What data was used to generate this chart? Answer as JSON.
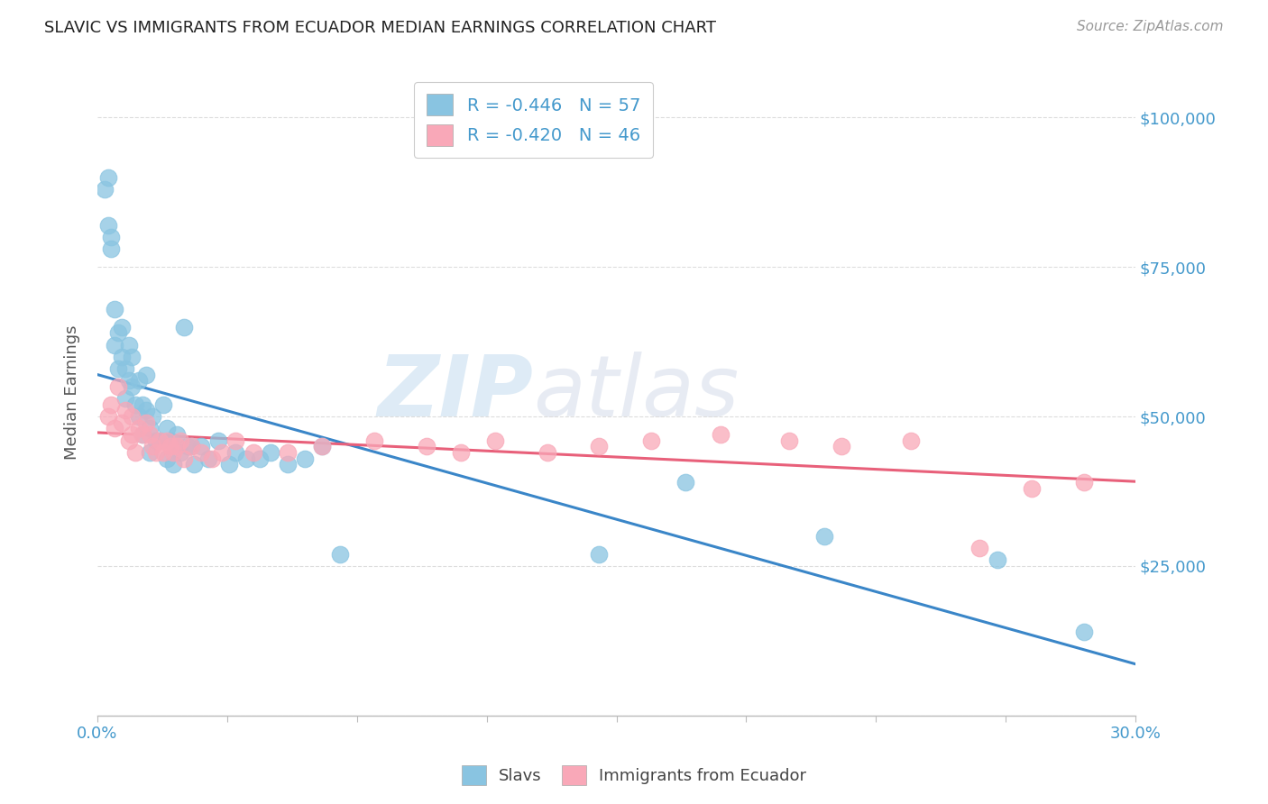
{
  "title": "SLAVIC VS IMMIGRANTS FROM ECUADOR MEDIAN EARNINGS CORRELATION CHART",
  "source": "Source: ZipAtlas.com",
  "ylabel": "Median Earnings",
  "watermark_left": "ZIP",
  "watermark_right": "atlas",
  "yticks": [
    0,
    25000,
    50000,
    75000,
    100000
  ],
  "ytick_labels": [
    "",
    "$25,000",
    "$50,000",
    "$75,000",
    "$100,000"
  ],
  "xlim": [
    0.0,
    0.3
  ],
  "ylim": [
    0,
    108000
  ],
  "color_slavs": "#89c4e1",
  "color_ecuador": "#f9a8b8",
  "color_trendline_slavs": "#3a86c8",
  "color_trendline_ecuador": "#e8607a",
  "color_axis_labels": "#4499cc",
  "legend_label1": "R = -0.446   N = 57",
  "legend_label2": "R = -0.420   N = 46",
  "slavs_x": [
    0.002,
    0.003,
    0.003,
    0.004,
    0.004,
    0.005,
    0.005,
    0.006,
    0.006,
    0.007,
    0.007,
    0.008,
    0.008,
    0.009,
    0.009,
    0.01,
    0.01,
    0.011,
    0.012,
    0.012,
    0.013,
    0.013,
    0.014,
    0.014,
    0.015,
    0.015,
    0.016,
    0.017,
    0.018,
    0.019,
    0.02,
    0.02,
    0.021,
    0.022,
    0.023,
    0.024,
    0.025,
    0.026,
    0.027,
    0.028,
    0.03,
    0.032,
    0.035,
    0.038,
    0.04,
    0.043,
    0.047,
    0.05,
    0.055,
    0.06,
    0.065,
    0.07,
    0.145,
    0.17,
    0.21,
    0.26,
    0.285
  ],
  "slavs_y": [
    88000,
    90000,
    82000,
    80000,
    78000,
    68000,
    62000,
    64000,
    58000,
    65000,
    60000,
    58000,
    53000,
    62000,
    56000,
    60000,
    55000,
    52000,
    56000,
    50000,
    52000,
    47000,
    57000,
    51000,
    48000,
    44000,
    50000,
    46000,
    46000,
    52000,
    48000,
    43000,
    46000,
    42000,
    47000,
    44000,
    65000,
    45000,
    45000,
    42000,
    45000,
    43000,
    46000,
    42000,
    44000,
    43000,
    43000,
    44000,
    42000,
    43000,
    45000,
    27000,
    27000,
    39000,
    30000,
    26000,
    14000
  ],
  "ecuador_x": [
    0.003,
    0.004,
    0.005,
    0.006,
    0.007,
    0.008,
    0.009,
    0.01,
    0.01,
    0.011,
    0.012,
    0.013,
    0.014,
    0.015,
    0.016,
    0.017,
    0.018,
    0.019,
    0.02,
    0.021,
    0.022,
    0.023,
    0.024,
    0.025,
    0.027,
    0.03,
    0.033,
    0.036,
    0.04,
    0.045,
    0.055,
    0.065,
    0.08,
    0.095,
    0.105,
    0.115,
    0.13,
    0.145,
    0.16,
    0.18,
    0.2,
    0.215,
    0.235,
    0.255,
    0.27,
    0.285
  ],
  "ecuador_y": [
    50000,
    52000,
    48000,
    55000,
    49000,
    51000,
    46000,
    50000,
    47000,
    44000,
    48000,
    47000,
    49000,
    47000,
    45000,
    44000,
    46000,
    44000,
    46000,
    45000,
    44000,
    45000,
    46000,
    43000,
    45000,
    44000,
    43000,
    44000,
    46000,
    44000,
    44000,
    45000,
    46000,
    45000,
    44000,
    46000,
    44000,
    45000,
    46000,
    47000,
    46000,
    45000,
    46000,
    28000,
    38000,
    39000
  ]
}
